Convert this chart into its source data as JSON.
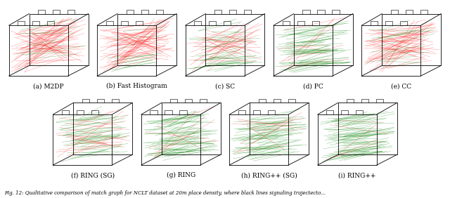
{
  "row1_labels": [
    "(a) M2DP",
    "(b) Fast Histogram",
    "(c) SC",
    "(d) PC",
    "(e) CC"
  ],
  "row2_labels": [
    "(f) RING (SG)",
    "(g) RING",
    "(h) RING++ (SG)",
    "(i) RING++"
  ],
  "caption": "Fig. 12: Qualitative comparison of match graph for NCLT dataset at 20m place density, where black lines signaling trajectecto...",
  "bg_color": "#ffffff",
  "label_fontsize": 6.5,
  "caption_fontsize": 5.0,
  "figsize": [
    6.4,
    2.82
  ],
  "dpi": 100,
  "row1_seeds": [
    1,
    11,
    21,
    31,
    41
  ],
  "row2_seeds": [
    101,
    111,
    121,
    131
  ],
  "panel_configs_r1": [
    {
      "red_dominant": true,
      "green_dominant": false,
      "n_red": 60,
      "n_green": 10
    },
    {
      "red_dominant": true,
      "green_dominant": false,
      "n_red": 55,
      "n_green": 12
    },
    {
      "red_dominant": false,
      "green_dominant": false,
      "n_red": 30,
      "n_green": 30
    },
    {
      "red_dominant": false,
      "green_dominant": true,
      "n_red": 10,
      "n_green": 55
    },
    {
      "red_dominant": true,
      "green_dominant": false,
      "n_red": 50,
      "n_green": 15
    }
  ],
  "panel_configs_r2": [
    {
      "red_dominant": false,
      "green_dominant": false,
      "n_red": 20,
      "n_green": 40
    },
    {
      "red_dominant": false,
      "green_dominant": true,
      "n_red": 8,
      "n_green": 60
    },
    {
      "red_dominant": false,
      "green_dominant": true,
      "n_red": 10,
      "n_green": 55
    },
    {
      "red_dominant": false,
      "green_dominant": true,
      "n_red": 5,
      "n_green": 65
    }
  ]
}
